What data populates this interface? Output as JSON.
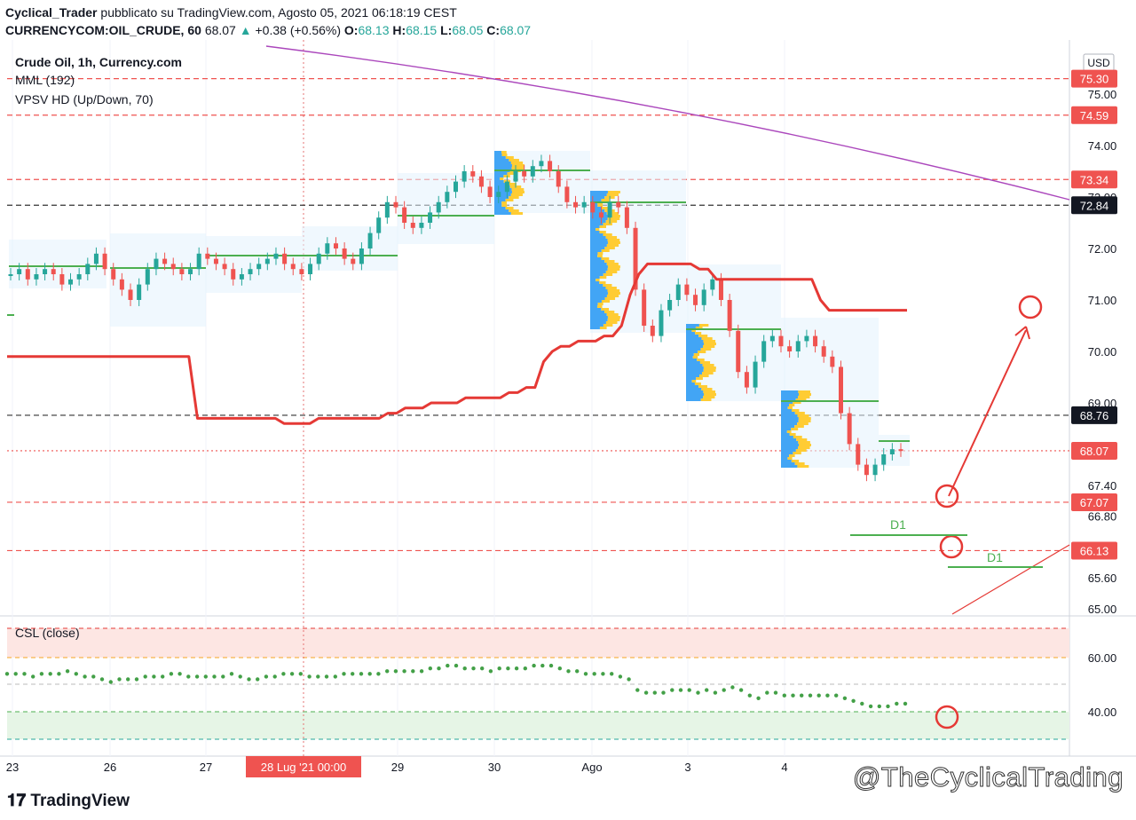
{
  "header": {
    "author": "Cyclical_Trader",
    "published": "pubblicato su TradingView.com, Agosto 05, 2021 06:18:19 CEST",
    "symbol": "CURRENCYCOM:OIL_CRUDE, 60",
    "last": "68.07",
    "change": "+0.38 (+0.56%)",
    "o_label": "O:",
    "o": "68.13",
    "h_label": "H:",
    "h": "68.15",
    "l_label": "L:",
    "l": "68.05",
    "c_label": "C:",
    "c": "68.07"
  },
  "legend": {
    "title": "Crude Oil, 1h, Currency.com",
    "mml": "MML (192)",
    "vpsv": "VPSV HD (Up/Down, 70)",
    "csl": "CSL (close)"
  },
  "footer": {
    "logo": "TradingView",
    "watermark": "@TheCyclicalTrading"
  },
  "colors": {
    "up": "#26a69a",
    "down": "#ef5350",
    "orange": "#f5a623",
    "green": "#4caf50",
    "red": "#e53935",
    "purple": "#ab47bc",
    "blue": "#42a5f5"
  },
  "chart_data": {
    "type": "line",
    "currency": "USD",
    "price_axis_ticks": [
      "75.00",
      "74.00",
      "73.00",
      "72.00",
      "71.00",
      "70.00",
      "69.00",
      "67.40",
      "66.80",
      "65.60",
      "65.00"
    ],
    "price_labels": [
      {
        "value": "75.30",
        "color": "red"
      },
      {
        "value": "74.59",
        "color": "red"
      },
      {
        "value": "73.34",
        "color": "red"
      },
      {
        "value": "72.84",
        "color": "dark"
      },
      {
        "value": "68.76",
        "color": "dark"
      },
      {
        "value": "68.07",
        "color": "red"
      },
      {
        "value": "67.07",
        "color": "red"
      },
      {
        "value": "66.13",
        "color": "red"
      }
    ],
    "x_ticks": [
      "23",
      "26",
      "27",
      "29",
      "30",
      "Ago",
      "3",
      "4"
    ],
    "crosshair_label": "28 Lug '21   00:00",
    "annotations": [
      "D1",
      "D1"
    ],
    "oscillator_ticks": [
      "60.00",
      "40.00"
    ],
    "closes": [
      71.5,
      71.6,
      71.4,
      71.5,
      71.6,
      71.5,
      71.3,
      71.4,
      71.5,
      71.7,
      71.9,
      71.6,
      71.4,
      71.2,
      71.0,
      71.3,
      71.6,
      71.8,
      71.7,
      71.6,
      71.5,
      71.6,
      71.9,
      71.8,
      71.7,
      71.6,
      71.4,
      71.5,
      71.6,
      71.7,
      71.8,
      71.9,
      71.7,
      71.6,
      71.5,
      71.7,
      71.9,
      72.1,
      72.0,
      71.8,
      71.7,
      72.0,
      72.3,
      72.6,
      72.9,
      72.8,
      72.5,
      72.4,
      72.5,
      72.7,
      72.9,
      73.1,
      73.3,
      73.5,
      73.4,
      73.2,
      73.0,
      73.1,
      73.3,
      73.5,
      73.4,
      73.6,
      73.7,
      73.5,
      73.2,
      72.9,
      72.8,
      72.9,
      72.7,
      72.6,
      72.9,
      72.8,
      72.4,
      71.2,
      70.5,
      70.3,
      70.8,
      71.0,
      71.3,
      71.1,
      70.9,
      71.2,
      71.4,
      71.0,
      70.4,
      69.6,
      69.3,
      69.8,
      70.2,
      70.3,
      70.1,
      70.0,
      70.2,
      70.3,
      70.1,
      69.9,
      69.7,
      68.8,
      68.2,
      67.8,
      67.6,
      67.8,
      68.0,
      68.1,
      68.07
    ],
    "series": [
      {
        "name": "MML (192)",
        "values": [
          69.9,
          69.9,
          69.9,
          69.9,
          69.9,
          69.9,
          69.9,
          69.9,
          69.9,
          69.9,
          69.9,
          69.9,
          69.9,
          69.9,
          69.9,
          69.9,
          69.9,
          69.9,
          69.9,
          69.9,
          69.9,
          69.9,
          68.7,
          68.7,
          68.7,
          68.7,
          68.7,
          68.7,
          68.7,
          68.7,
          68.7,
          68.7,
          68.6,
          68.6,
          68.6,
          68.6,
          68.7,
          68.7,
          68.7,
          68.7,
          68.7,
          68.7,
          68.7,
          68.7,
          68.8,
          68.8,
          68.9,
          68.9,
          68.9,
          69.0,
          69.0,
          69.0,
          69.0,
          69.1,
          69.1,
          69.1,
          69.1,
          69.1,
          69.2,
          69.2,
          69.3,
          69.3,
          69.8,
          70.0,
          70.1,
          70.1,
          70.2,
          70.2,
          70.2,
          70.3,
          70.3,
          70.5,
          71.1,
          71.5,
          71.7,
          71.7,
          71.7,
          71.7,
          71.7,
          71.7,
          71.6,
          71.6,
          71.4,
          71.4,
          71.4,
          71.4,
          71.4,
          71.4,
          71.4,
          71.4,
          71.4,
          71.4,
          71.4,
          71.4,
          71.0,
          70.8,
          70.8,
          70.8,
          70.8,
          70.8,
          70.8,
          70.8,
          70.8,
          70.8,
          70.8
        ]
      },
      {
        "name": "CSL (close)",
        "values": [
          54,
          54,
          54,
          53,
          54,
          54,
          54,
          55,
          54,
          53,
          53,
          52,
          51,
          52,
          52,
          52,
          53,
          53,
          53,
          54,
          54,
          53,
          53,
          53,
          53,
          53,
          54,
          53,
          52,
          52,
          53,
          53,
          54,
          54,
          54,
          53,
          53,
          53,
          53,
          54,
          54,
          54,
          54,
          54,
          55,
          55,
          55,
          55,
          55,
          56,
          56,
          57,
          57,
          56,
          56,
          56,
          55,
          56,
          56,
          56,
          56,
          57,
          57,
          57,
          56,
          55,
          55,
          54,
          54,
          54,
          54,
          53,
          52,
          48,
          47,
          47,
          47,
          48,
          48,
          48,
          47,
          48,
          47,
          48,
          49,
          48,
          46,
          45,
          47,
          47,
          46,
          46,
          46,
          46,
          46,
          46,
          46,
          45,
          44,
          43,
          42,
          42,
          42,
          43,
          43
        ]
      }
    ]
  }
}
